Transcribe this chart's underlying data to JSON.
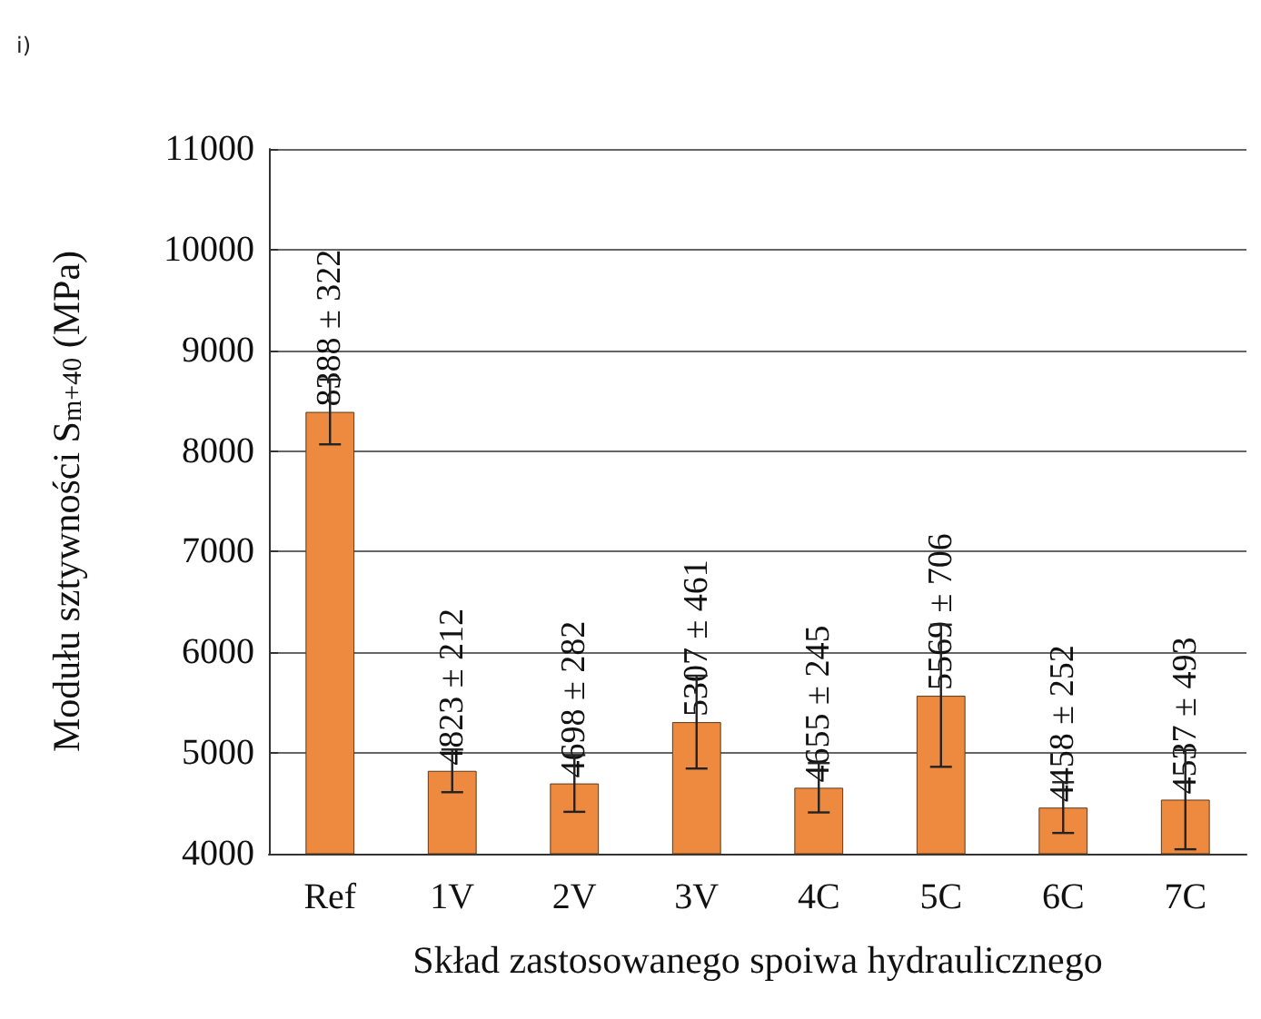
{
  "chart_data": {
    "type": "bar",
    "title": "i)",
    "xlabel": "Skład zastosowanego spoiwa hydraulicznego",
    "ylabel": "Modułu sztywności S$_{m+40}$ (MPa)",
    "categories": [
      "Ref",
      "1V",
      "2V",
      "3V",
      "4C",
      "5C",
      "6C",
      "7C"
    ],
    "values": [
      8388,
      4823,
      4698,
      5307,
      4655,
      5569,
      4458,
      4537
    ],
    "errors": [
      322,
      212,
      282,
      461,
      245,
      706,
      252,
      493
    ],
    "value_labels": [
      "8388 ± 322",
      "4823 ± 212",
      "4698 ± 282",
      "5307 ± 461",
      "4655 ± 245",
      "5569 ± 706",
      "4458 ± 252",
      "4537 ± 493"
    ],
    "color": "#ed8a3f",
    "ylim": [
      4000,
      11000
    ],
    "yticks": [
      4000,
      5000,
      6000,
      7000,
      8000,
      9000,
      10000,
      11000
    ],
    "grid": "y"
  }
}
